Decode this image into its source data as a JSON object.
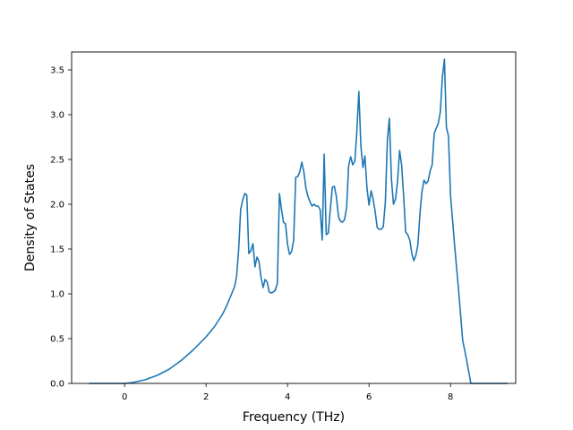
{
  "chart_data": {
    "type": "line",
    "title": "",
    "xlabel": "Frequency (THz)",
    "ylabel": "Density of States",
    "xlim": [
      -1.3,
      9.6
    ],
    "ylim": [
      0.0,
      3.7
    ],
    "xticks": [
      0,
      2,
      4,
      6,
      8
    ],
    "xtick_labels": [
      "0",
      "2",
      "4",
      "6",
      "8"
    ],
    "yticks": [
      0.0,
      0.5,
      1.0,
      1.5,
      2.0,
      2.5,
      3.0,
      3.5
    ],
    "ytick_labels": [
      "0.0",
      "0.5",
      "1.0",
      "1.5",
      "2.0",
      "2.5",
      "3.0",
      "3.5"
    ],
    "grid": false,
    "series": [
      {
        "color": "#1f77b4",
        "x": [
          -0.87,
          0.0,
          0.2,
          0.5,
          0.8,
          1.1,
          1.4,
          1.7,
          2.0,
          2.2,
          2.4,
          2.5,
          2.6,
          2.7,
          2.75,
          2.8,
          2.85,
          2.9,
          2.95,
          3.0,
          3.05,
          3.1,
          3.15,
          3.2,
          3.25,
          3.3,
          3.35,
          3.4,
          3.45,
          3.5,
          3.55,
          3.6,
          3.65,
          3.7,
          3.75,
          3.8,
          3.85,
          3.9,
          3.95,
          4.0,
          4.05,
          4.1,
          4.15,
          4.2,
          4.25,
          4.3,
          4.35,
          4.4,
          4.45,
          4.5,
          4.55,
          4.6,
          4.65,
          4.7,
          4.75,
          4.8,
          4.85,
          4.9,
          4.95,
          5.0,
          5.05,
          5.1,
          5.15,
          5.2,
          5.25,
          5.3,
          5.35,
          5.4,
          5.45,
          5.5,
          5.55,
          5.6,
          5.65,
          5.7,
          5.75,
          5.8,
          5.85,
          5.9,
          5.95,
          6.0,
          6.05,
          6.1,
          6.15,
          6.2,
          6.25,
          6.3,
          6.35,
          6.4,
          6.45,
          6.5,
          6.55,
          6.6,
          6.65,
          6.7,
          6.75,
          6.8,
          6.85,
          6.9,
          6.95,
          7.0,
          7.05,
          7.1,
          7.15,
          7.2,
          7.25,
          7.3,
          7.35,
          7.4,
          7.45,
          7.5,
          7.55,
          7.6,
          7.65,
          7.7,
          7.75,
          7.8,
          7.85,
          7.9,
          7.95,
          8.0,
          8.1,
          8.2,
          8.3,
          8.4,
          8.5,
          8.55,
          8.6,
          9.4
        ],
        "y": [
          0.0,
          0.0,
          0.01,
          0.04,
          0.09,
          0.16,
          0.26,
          0.38,
          0.52,
          0.63,
          0.77,
          0.86,
          0.97,
          1.08,
          1.2,
          1.5,
          1.94,
          2.05,
          2.12,
          2.1,
          1.45,
          1.48,
          1.56,
          1.3,
          1.41,
          1.36,
          1.18,
          1.07,
          1.16,
          1.13,
          1.02,
          1.01,
          1.02,
          1.04,
          1.12,
          2.12,
          1.95,
          1.8,
          1.78,
          1.55,
          1.44,
          1.47,
          1.6,
          2.3,
          2.31,
          2.36,
          2.47,
          2.36,
          2.18,
          2.09,
          2.03,
          1.98,
          2.0,
          1.98,
          1.98,
          1.94,
          1.6,
          2.56,
          1.66,
          1.68,
          1.95,
          2.19,
          2.2,
          2.08,
          1.86,
          1.81,
          1.8,
          1.83,
          1.97,
          2.43,
          2.53,
          2.44,
          2.48,
          2.8,
          3.26,
          2.65,
          2.41,
          2.54,
          2.18,
          1.99,
          2.15,
          2.06,
          1.92,
          1.74,
          1.72,
          1.72,
          1.75,
          2.02,
          2.72,
          2.96,
          2.28,
          2.0,
          2.06,
          2.25,
          2.6,
          2.44,
          2.08,
          1.69,
          1.66,
          1.6,
          1.45,
          1.37,
          1.43,
          1.55,
          1.9,
          2.14,
          2.27,
          2.23,
          2.26,
          2.37,
          2.44,
          2.79,
          2.85,
          2.9,
          3.03,
          3.42,
          3.62,
          2.86,
          2.76,
          2.1,
          1.55,
          1.03,
          0.48,
          0.25,
          0.0,
          0.0,
          0.0,
          0.0
        ]
      }
    ]
  }
}
